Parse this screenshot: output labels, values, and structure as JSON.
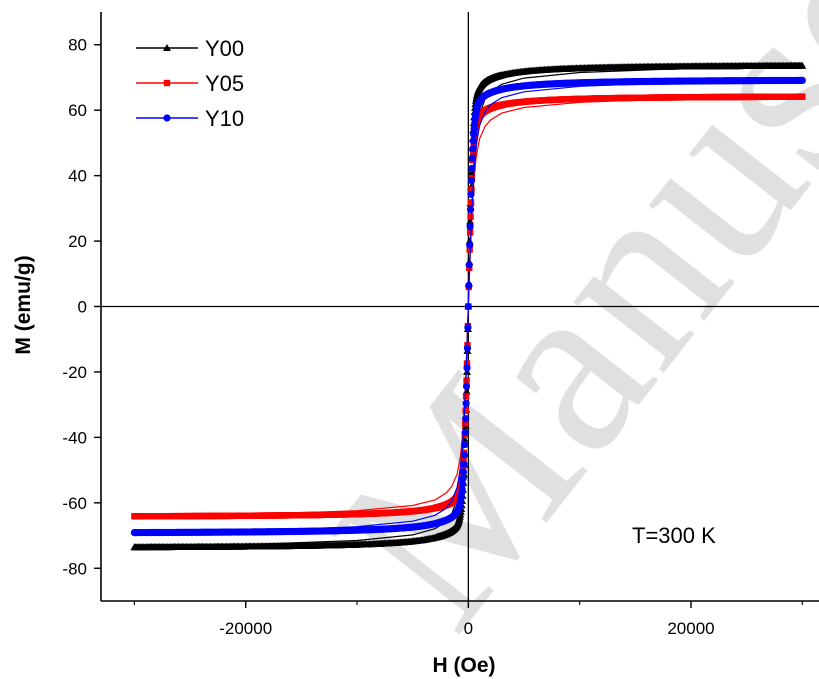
{
  "chart_data": {
    "type": "line",
    "xlabel": "H (Oe)",
    "ylabel": "M (emu/g)",
    "xlim": [
      -33000,
      31500
    ],
    "ylim": [
      -90,
      90
    ],
    "xticks": [
      -20000,
      0,
      20000
    ],
    "xtick_labels": [
      "-20000",
      "0",
      "20000"
    ],
    "yticks": [
      -80,
      -60,
      -40,
      -20,
      0,
      20,
      40,
      60,
      80
    ],
    "ytick_labels": [
      "-80",
      "-60",
      "-40",
      "-20",
      "0",
      "20",
      "40",
      "60",
      "80"
    ],
    "grid": false,
    "legend_position": "top-left",
    "annotation": "T=300 K",
    "series": [
      {
        "name": "Y00",
        "color": "#000000",
        "marker": "triangle",
        "Ms": 74,
        "x": [
          -30000,
          -20000,
          -10000,
          -5000,
          -3000,
          -2000,
          -1500,
          -1000,
          -700,
          -500,
          -300,
          -150,
          0,
          150,
          300,
          500,
          700,
          1000,
          1500,
          2000,
          3000,
          5000,
          10000,
          20000,
          30000
        ],
        "y": [
          -73.4,
          -72.8,
          -71.5,
          -69.8,
          -67.9,
          -65.7,
          -63.4,
          -58.7,
          -52.0,
          -44.0,
          -30.0,
          -16.0,
          0,
          16.0,
          30.0,
          44.0,
          52.0,
          58.7,
          63.4,
          65.7,
          67.9,
          69.8,
          71.5,
          72.8,
          73.4
        ]
      },
      {
        "name": "Y05",
        "color": "#ff0000",
        "marker": "square",
        "Ms": 64.5,
        "x": [
          -30000,
          -20000,
          -10000,
          -5000,
          -3000,
          -2000,
          -1500,
          -1000,
          -700,
          -500,
          -300,
          -150,
          0,
          150,
          300,
          500,
          700,
          1000,
          1500,
          2000,
          3000,
          5000,
          10000,
          20000,
          30000
        ],
        "y": [
          -64.2,
          -63.6,
          -62.4,
          -60.8,
          -59.1,
          -57.0,
          -55.0,
          -51.2,
          -45.5,
          -38.5,
          -26.5,
          -14.0,
          0,
          14.0,
          26.5,
          38.5,
          45.5,
          51.2,
          55.0,
          57.0,
          59.1,
          60.8,
          62.4,
          63.6,
          64.2
        ]
      },
      {
        "name": "Y10",
        "color": "#0000ff",
        "marker": "circle",
        "Ms": 69.5,
        "x": [
          -30000,
          -20000,
          -10000,
          -5000,
          -3000,
          -2000,
          -1500,
          -1000,
          -700,
          -500,
          -300,
          -150,
          0,
          150,
          300,
          500,
          700,
          1000,
          1500,
          2000,
          3000,
          5000,
          10000,
          20000,
          30000
        ],
        "y": [
          -69.2,
          -68.6,
          -67.3,
          -65.6,
          -63.8,
          -61.7,
          -59.5,
          -55.2,
          -49.0,
          -41.5,
          -28.5,
          -15.0,
          0,
          15.0,
          28.5,
          41.5,
          49.0,
          55.2,
          59.5,
          61.7,
          63.8,
          65.6,
          67.3,
          68.6,
          69.2
        ]
      }
    ]
  },
  "watermark": "Manuscript"
}
